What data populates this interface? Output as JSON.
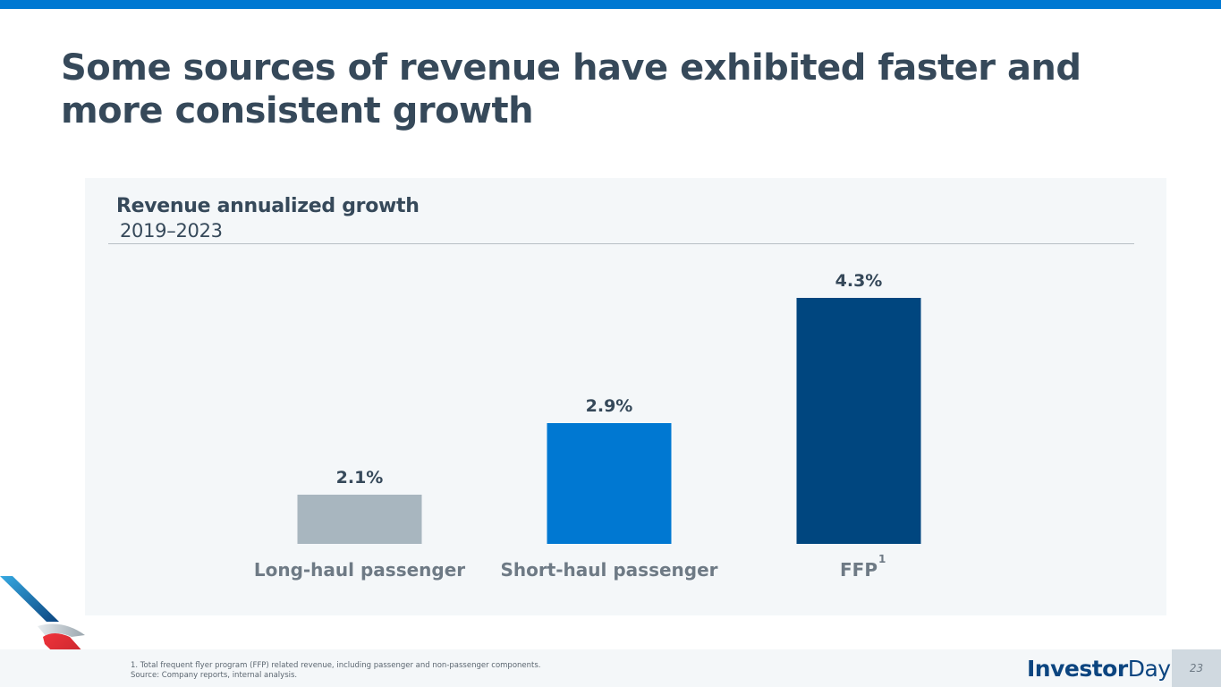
{
  "slide": {
    "title": "Some sources of revenue have exhibited faster and more consistent growth",
    "page_number": "23",
    "brand": {
      "bold": "Investor",
      "light": "Day"
    },
    "footnotes": [
      "1. Total frequent flyer program (FFP) related revenue, including passenger and non-passenger components.",
      "Source: Company reports, internal analysis."
    ],
    "colors": {
      "top_bar": "#0078d2",
      "title": "#36495a",
      "panel_bg": "#f4f7f9"
    },
    "logo_icon": "american-airlines-flight-symbol-icon"
  },
  "chart_data": {
    "type": "bar",
    "title": "Revenue annualized growth",
    "subtitle": "2019–2023",
    "categories": [
      "Long-haul passenger",
      "Short-haul passenger",
      "FFP"
    ],
    "category_superscripts": [
      "",
      "",
      "1"
    ],
    "values": [
      2.1,
      2.9,
      4.3
    ],
    "value_labels": [
      "2.1%",
      "2.9%",
      "4.3%"
    ],
    "colors": [
      "#a8b6bf",
      "#0078d2",
      "#00467f"
    ],
    "xlabel": "",
    "ylabel": "",
    "unit": "%",
    "ylim": [
      1.55,
      4.3
    ],
    "grid": false,
    "legend": "none"
  }
}
